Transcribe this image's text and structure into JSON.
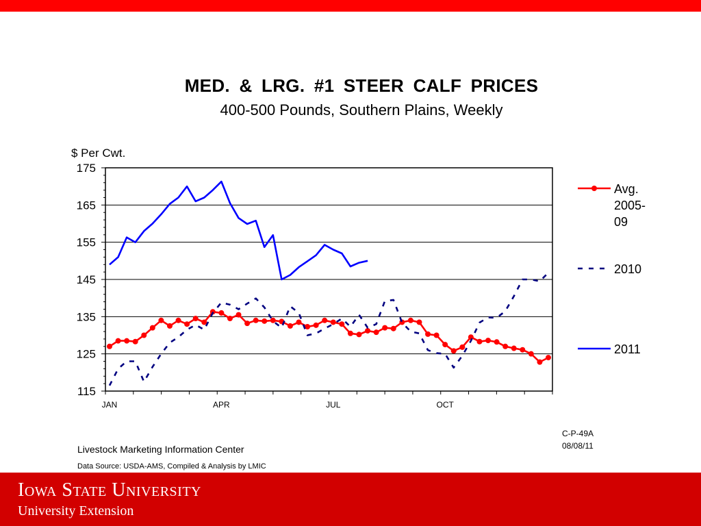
{
  "header": {
    "title": "MED. & LRG. #1 STEER CALF PRICES",
    "subtitle": "400-500 Pounds, Southern Plains, Weekly"
  },
  "chart_data": {
    "type": "line",
    "ylabel": "$ Per Cwt.",
    "ylim": [
      115,
      175
    ],
    "yticks": [
      115,
      125,
      135,
      145,
      155,
      165,
      175
    ],
    "x_range": [
      1,
      52
    ],
    "x_tick_labels": [
      {
        "label": "JAN",
        "week": 1
      },
      {
        "label": "APR",
        "week": 14
      },
      {
        "label": "JUL",
        "week": 27
      },
      {
        "label": "OCT",
        "week": 40
      }
    ],
    "grid": true,
    "legend_position": "right",
    "series": [
      {
        "name": "Avg. 2005-09",
        "legend_lines": [
          "Avg.",
          "2005-",
          "09"
        ],
        "color": "#ff0000",
        "style": "solid-markers",
        "values": [
          127,
          128.5,
          128.5,
          128.3,
          130,
          132,
          134,
          132.5,
          134,
          133,
          134.5,
          133.5,
          136.3,
          136,
          134.5,
          135.5,
          133.2,
          134,
          133.8,
          134,
          133.7,
          132.5,
          133.5,
          132.3,
          132.7,
          134,
          133.5,
          133,
          130.5,
          130.2,
          131.2,
          130.8,
          132,
          131.8,
          133.5,
          134,
          133.5,
          130.3,
          130,
          127.5,
          125.8,
          126.8,
          129.5,
          128.3,
          128.6,
          128.2,
          127,
          126.5,
          126.1,
          125,
          122.8,
          124
        ]
      },
      {
        "name": "2010",
        "legend_lines": [
          "2010"
        ],
        "color": "#000080",
        "style": "dashed",
        "values": [
          116.5,
          121,
          123,
          123,
          117.5,
          121.5,
          125,
          128,
          129.5,
          131.5,
          132.8,
          131.5,
          136,
          138.8,
          138.2,
          137,
          138.5,
          139.9,
          137.5,
          133.8,
          132,
          137.8,
          136,
          130,
          130.5,
          131.8,
          133,
          134.5,
          132.3,
          135.5,
          132,
          133,
          139.2,
          139.5,
          133.4,
          131,
          130.5,
          126,
          125.2,
          125,
          121.3,
          124.5,
          128.5,
          133.4,
          134.8,
          134.7,
          136.5,
          140.5,
          145,
          145,
          144.5,
          146.8
        ]
      },
      {
        "name": "2011",
        "legend_lines": [
          "2011"
        ],
        "color": "#0000ff",
        "style": "solid",
        "values": [
          149,
          151,
          156.3,
          155,
          158,
          160,
          162.5,
          165.3,
          167,
          170,
          166,
          167,
          169,
          171.3,
          165.5,
          161.5,
          159.9,
          160.8,
          153.7,
          156.9,
          145,
          146.2,
          148.3,
          149.9,
          151.5,
          154.3,
          153,
          152,
          148.5,
          149.5,
          150
        ]
      }
    ]
  },
  "footer": {
    "code": "C-P-49A",
    "date": "08/08/11",
    "center": "Livestock Marketing Information Center",
    "source": "Data Source:  USDA-AMS, Compiled & Analysis by LMIC",
    "university": "Iowa State University",
    "extension": "University Extension"
  },
  "colors": {
    "top_bar": "#ff0000",
    "footer_bar": "#d20000"
  }
}
